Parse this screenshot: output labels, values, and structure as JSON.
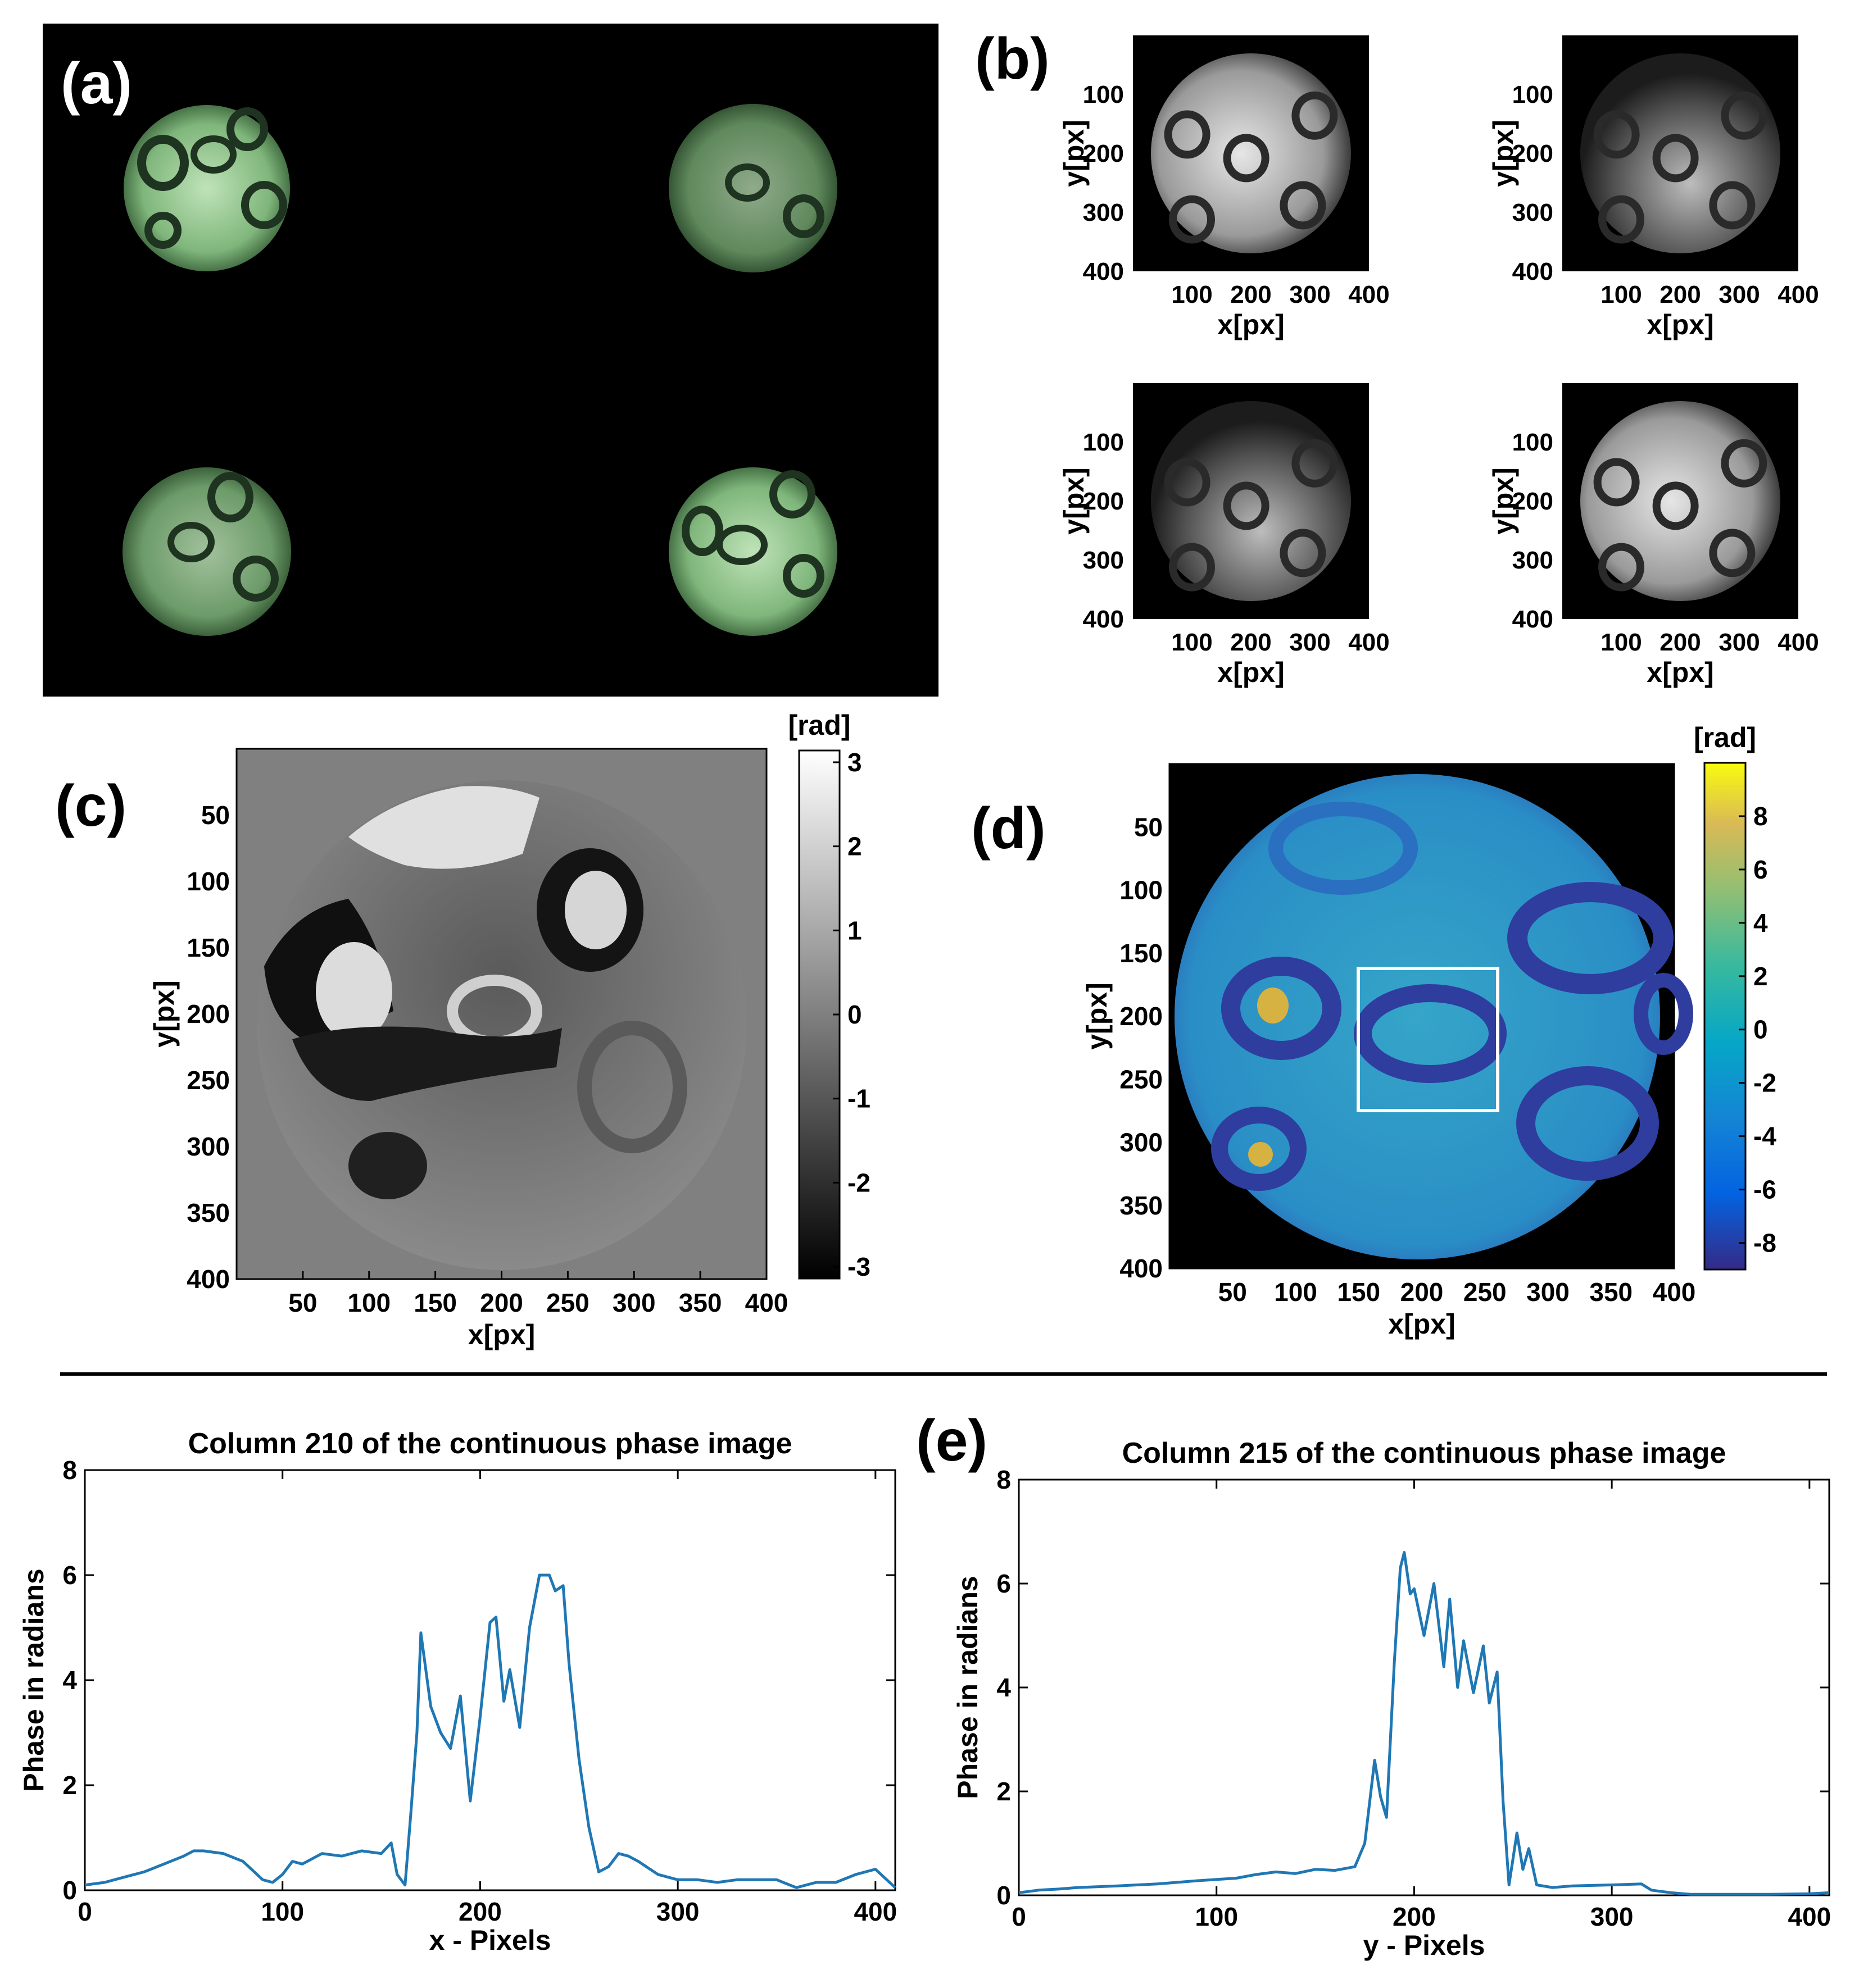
{
  "panels": {
    "a": {
      "label": "(a)"
    },
    "b": {
      "label": "(b)",
      "xlabel": "x[px]",
      "ylabel": "y[px]",
      "xticks": [
        "100",
        "200",
        "300",
        "400"
      ],
      "yticks": [
        "100",
        "200",
        "300",
        "400"
      ]
    },
    "c": {
      "label": "(c)",
      "xlabel": "x[px]",
      "ylabel": "y[px]",
      "colorbar_label": "[rad]",
      "xticks": [
        "50",
        "100",
        "150",
        "200",
        "250",
        "300",
        "350",
        "400"
      ],
      "yticks": [
        "50",
        "100",
        "150",
        "200",
        "250",
        "300",
        "350",
        "400"
      ],
      "colorbar_ticks": [
        "3",
        "2",
        "1",
        "0",
        "-1",
        "-2",
        "-3"
      ]
    },
    "d": {
      "label": "(d)",
      "xlabel": "x[px]",
      "ylabel": "y[px]",
      "colorbar_label": "[rad]",
      "xticks": [
        "50",
        "100",
        "150",
        "200",
        "250",
        "300",
        "350",
        "400"
      ],
      "yticks": [
        "50",
        "100",
        "150",
        "200",
        "250",
        "300",
        "350",
        "400"
      ],
      "colorbar_ticks": [
        "8",
        "6",
        "4",
        "2",
        "0",
        "-2",
        "-4",
        "-6",
        "-8"
      ]
    },
    "e": {
      "label": "(e)"
    }
  },
  "colors": {
    "line": "#1f77b4",
    "bright_field": "#cfe9c9",
    "phase_mid": "#2d8fc6"
  },
  "chart_data": [
    {
      "type": "line",
      "title": "Column 210 of the continuous phase image",
      "xlabel": "x - Pixels",
      "ylabel": "Phase in radians",
      "xlim": [
        0,
        410
      ],
      "ylim": [
        0,
        8
      ],
      "xticks": [
        "0",
        "100",
        "200",
        "300",
        "400"
      ],
      "yticks": [
        "0",
        "2",
        "4",
        "6",
        "8"
      ],
      "x": [
        0,
        10,
        20,
        30,
        40,
        50,
        55,
        60,
        70,
        80,
        90,
        95,
        100,
        105,
        110,
        120,
        130,
        140,
        150,
        155,
        158,
        162,
        165,
        168,
        170,
        175,
        180,
        185,
        190,
        195,
        200,
        205,
        208,
        212,
        215,
        220,
        225,
        230,
        235,
        238,
        242,
        245,
        250,
        255,
        260,
        265,
        270,
        275,
        280,
        290,
        300,
        310,
        320,
        330,
        340,
        350,
        360,
        370,
        380,
        390,
        400,
        410
      ],
      "y": [
        0.1,
        0.15,
        0.25,
        0.35,
        0.5,
        0.65,
        0.75,
        0.75,
        0.7,
        0.55,
        0.2,
        0.15,
        0.3,
        0.55,
        0.5,
        0.7,
        0.65,
        0.75,
        0.7,
        0.9,
        0.3,
        0.1,
        1.5,
        3.0,
        4.9,
        3.5,
        3.0,
        2.7,
        3.7,
        1.7,
        3.3,
        5.1,
        5.2,
        3.6,
        4.2,
        3.1,
        5.0,
        6.0,
        6.0,
        5.7,
        5.8,
        4.3,
        2.5,
        1.2,
        0.35,
        0.45,
        0.7,
        0.65,
        0.55,
        0.3,
        0.2,
        0.2,
        0.15,
        0.2,
        0.2,
        0.2,
        0.05,
        0.15,
        0.15,
        0.3,
        0.4,
        0.05
      ]
    },
    {
      "type": "line",
      "title": "Column 215 of the continuous phase image",
      "xlabel": "y - Pixels",
      "ylabel": "Phase in radians",
      "xlim": [
        0,
        410
      ],
      "ylim": [
        0,
        8
      ],
      "xticks": [
        "0",
        "100",
        "200",
        "300",
        "400"
      ],
      "yticks": [
        "0",
        "2",
        "4",
        "6",
        "8"
      ],
      "x": [
        0,
        10,
        20,
        30,
        50,
        70,
        90,
        110,
        120,
        130,
        140,
        150,
        160,
        170,
        175,
        180,
        183,
        186,
        190,
        193,
        195,
        198,
        200,
        205,
        210,
        215,
        218,
        222,
        225,
        230,
        235,
        238,
        242,
        245,
        248,
        252,
        255,
        258,
        262,
        270,
        280,
        300,
        315,
        320,
        330,
        340,
        360,
        380,
        400,
        410
      ],
      "y": [
        0.05,
        0.1,
        0.12,
        0.15,
        0.18,
        0.22,
        0.28,
        0.33,
        0.4,
        0.45,
        0.42,
        0.5,
        0.48,
        0.55,
        1.0,
        2.6,
        1.9,
        1.5,
        4.5,
        6.3,
        6.6,
        5.8,
        5.9,
        5.0,
        6.0,
        4.4,
        5.7,
        4.0,
        4.9,
        3.9,
        4.8,
        3.7,
        4.3,
        1.8,
        0.2,
        1.2,
        0.5,
        0.9,
        0.2,
        0.15,
        0.18,
        0.2,
        0.22,
        0.1,
        0.05,
        0.02,
        0.02,
        0.02,
        0.03,
        0.05
      ]
    }
  ]
}
